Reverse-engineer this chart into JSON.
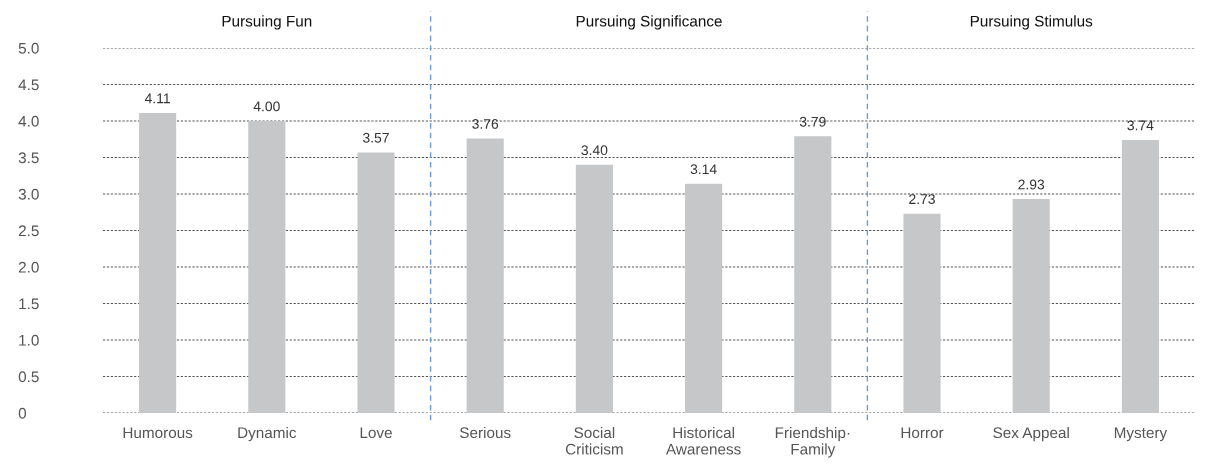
{
  "chart_data": {
    "type": "bar",
    "categories": [
      "Humorous",
      "Dynamic",
      "Love",
      "Serious",
      "Social\nCriticism",
      "Historical\nAwareness",
      "Friendship·\nFamily",
      "Horror",
      "Sex Appeal",
      "Mystery"
    ],
    "values": [
      4.11,
      4.0,
      3.57,
      3.76,
      3.4,
      3.14,
      3.79,
      2.73,
      2.93,
      3.74
    ],
    "value_labels": [
      "4.11",
      "4.00",
      "3.57",
      "3.76",
      "3.40",
      "3.14",
      "3.79",
      "2.73",
      "2.93",
      "3.74"
    ],
    "color": "#c6c7c9",
    "ylim": [
      0,
      5
    ],
    "yticks": [
      0,
      {
        "value": 0.5,
        "label": "0.5"
      },
      {
        "value": 1,
        "label": "1.0"
      },
      {
        "value": 1.5,
        "label": "1.5"
      },
      {
        "value": 2,
        "label": "2.0"
      },
      {
        "value": 2.5,
        "label": "2.5"
      },
      {
        "value": 3,
        "label": "3.0"
      },
      {
        "value": 3.5,
        "label": "3.5"
      },
      {
        "value": 4,
        "label": "4.0"
      },
      {
        "value": 4.5,
        "label": "4.5"
      },
      {
        "value": 5,
        "label": "5.0"
      }
    ],
    "grid": "y",
    "annotations": [
      "Pursuing Fun",
      "Pursuing Significance",
      "Pursuing Stimulus"
    ]
  }
}
